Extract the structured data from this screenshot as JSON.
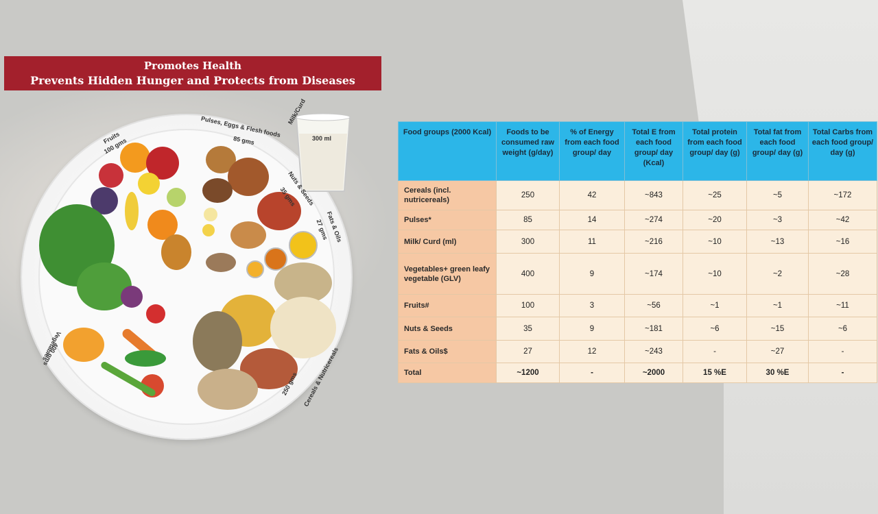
{
  "banner": {
    "line1": "Promotes Health",
    "line2": "Prevents Hidden Hunger and Protects from Diseases"
  },
  "plate": {
    "fruits_label": "Fruits",
    "fruits_amount": "100 gms",
    "pulses_label": "Pulses, Eggs & Flesh foods",
    "pulses_amount": "85 gms",
    "nuts_label": "Nuts & Seeds",
    "nuts_amount": "35 gms",
    "fats_label": "Fats & Oils",
    "fats_amount": "27 gms",
    "milk_label": "Milk/Curd",
    "milk_amount": "300 ml",
    "cereals_label": "Cereals & Nutricereals",
    "cereals_amount": "250 gms",
    "veg_label": "Vegetables",
    "veg_amount": "400 gms"
  },
  "table": {
    "headers": [
      "Food groups (2000 Kcal)",
      "Foods to be consumed raw weight (g/day)",
      "% of Energy from each food group/ day",
      "Total E from each food group/ day (Kcal)",
      "Total protein from each food group/ day (g)",
      "Total fat from each food group/ day (g)",
      "Total Carbs from each food group/ day (g)"
    ],
    "rows": [
      {
        "group": "Cereals (incl. nutricereals)",
        "raw": "250",
        "energy_pct": "42",
        "kcal": "~843",
        "protein": "~25",
        "fat": "~5",
        "carbs": "~172"
      },
      {
        "group": "Pulses*",
        "raw": "85",
        "energy_pct": "14",
        "kcal": "~274",
        "protein": "~20",
        "fat": "~3",
        "carbs": "~42"
      },
      {
        "group": "Milk/ Curd (ml)",
        "raw": "300",
        "energy_pct": "11",
        "kcal": "~216",
        "protein": "~10",
        "fat": "~13",
        "carbs": "~16"
      },
      {
        "group": "Vegetables+ green leafy vegetable (GLV)",
        "raw": "400",
        "energy_pct": "9",
        "kcal": "~174",
        "protein": "~10",
        "fat": "~2",
        "carbs": "~28"
      },
      {
        "group": "Fruits#",
        "raw": "100",
        "energy_pct": "3",
        "kcal": "~56",
        "protein": "~1",
        "fat": "~1",
        "carbs": "~11"
      },
      {
        "group": "Nuts & Seeds",
        "raw": "35",
        "energy_pct": "9",
        "kcal": "~181",
        "protein": "~6",
        "fat": "~15",
        "carbs": "~6"
      },
      {
        "group": "Fats & Oils$",
        "raw": "27",
        "energy_pct": "12",
        "kcal": "~243",
        "protein": "-",
        "fat": "~27",
        "carbs": "-"
      },
      {
        "group": "Total",
        "raw": "~1200",
        "energy_pct": "-",
        "kcal": "~2000",
        "protein": "15 %E",
        "fat": "30 %E",
        "carbs": "-"
      }
    ]
  },
  "colors": {
    "banner": "#a3202c",
    "header": "#2cb6e8",
    "group_cell": "#f6c8a4",
    "data_cell": "#fbeedc"
  }
}
